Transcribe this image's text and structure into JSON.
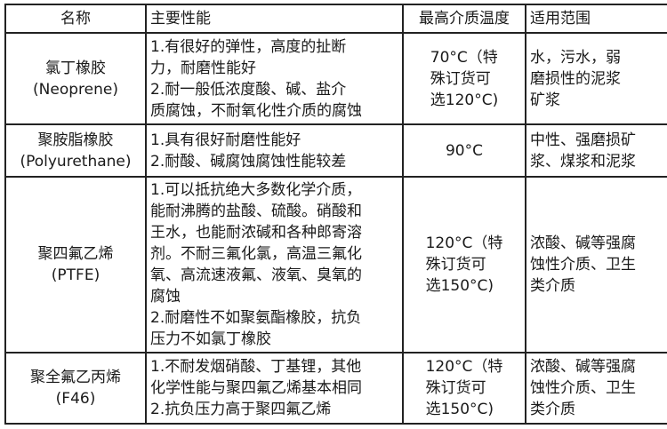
{
  "headers": [
    "名称",
    "主要性能",
    "最高介质温度",
    "适用范围"
  ],
  "rows": [
    {
      "name": [
        "氯丁橡胶",
        "(Neoprene)"
      ],
      "performance": [
        "1.有很好的弹性，高度的扯断",
        "力，耐磨性能好",
        "2.耐一般低浓度酸、碱、盐介",
        "质腐蚀，不耐氧化性介质的腐蚀"
      ],
      "temp": [
        "70°C（特",
        "殊订货可",
        "选120°C)"
      ],
      "scope": [
        "水，污水，弱",
        "磨损性的泥浆",
        "矿浆"
      ]
    },
    {
      "name": [
        "聚胺脂橡胶",
        "(Polyurethane)"
      ],
      "performance": [
        "1.具有很好耐磨性能好",
        "2.耐酸、碱腐蚀腐蚀性能较差"
      ],
      "temp": [
        "90°C"
      ],
      "scope": [
        "中性、强磨损矿",
        "浆、煤浆和泥浆"
      ]
    },
    {
      "name": [
        "聚四氟乙烯",
        "(PTFE)"
      ],
      "performance": [
        "1.可以抵抗绝大多数化学介质，",
        "能耐沸腾的盐酸、硫酸。硝酸和",
        "王水，也能耐浓碱和各种郎寄溶",
        "剂。不耐三氟化氯，高温三氟化",
        "氧、高流速液氟、液氧、臭氧的",
        "腐蚀",
        "2.耐磨性不如聚氨酯橡胶，抗负",
        "压力不如氯丁橡胶"
      ],
      "temp": [
        "120°C（特",
        "殊订货可",
        "选150°C)"
      ],
      "scope": [
        "浓酸、碱等强腐",
        "蚀性介质、卫生",
        "类介质"
      ]
    },
    {
      "name": [
        "聚全氟乙丙烯",
        "(F46)"
      ],
      "performance": [
        "1.不耐发烟硝酸、丁基锂，其他",
        "化学性能与聚四氟乙烯基本相同",
        "2.抗负压力高于聚四氟乙烯"
      ],
      "temp": [
        "120°C（特",
        "殊订货可",
        "选150°C)"
      ],
      "scope": [
        "浓酸、碱等强腐",
        "蚀性介质、卫生",
        "类介质"
      ]
    }
  ]
}
